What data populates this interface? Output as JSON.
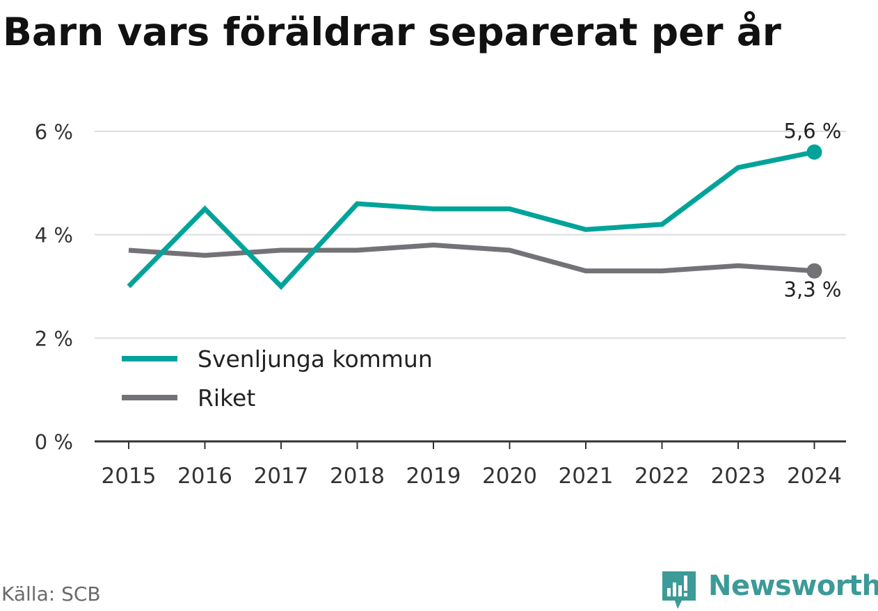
{
  "chart_data": {
    "type": "line",
    "title": "Barn vars föräldrar separerat per år",
    "xlabel": "",
    "ylabel": "",
    "x": [
      "2015",
      "2016",
      "2017",
      "2018",
      "2019",
      "2020",
      "2021",
      "2022",
      "2023",
      "2024"
    ],
    "ylim": [
      0,
      6
    ],
    "y_ticks": [
      0,
      2,
      4,
      6
    ],
    "y_tick_labels": [
      "0 %",
      "2 %",
      "4 %",
      "6 %"
    ],
    "grid": true,
    "legend_position": "bottom-left",
    "series": [
      {
        "name": "Svenljunga kommun",
        "color": "#00a39a",
        "values": [
          3.0,
          4.5,
          3.0,
          4.6,
          4.5,
          4.5,
          4.1,
          4.2,
          5.3,
          5.6
        ],
        "end_label": "5,6 %"
      },
      {
        "name": "Riket",
        "color": "#737277",
        "values": [
          3.7,
          3.6,
          3.7,
          3.7,
          3.8,
          3.7,
          3.3,
          3.3,
          3.4,
          3.3
        ],
        "end_label": "3,3 %"
      }
    ]
  },
  "footer": {
    "source": "Källa: SCB",
    "brand": "Newsworthy",
    "brand_color": "#3c9a97",
    "brand_icon": "bar-chart-speech-bubble-icon"
  }
}
